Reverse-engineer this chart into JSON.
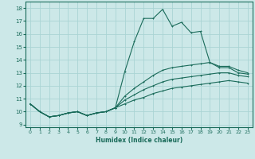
{
  "bg_color": "#cce8e8",
  "grid_color": "#aad4d4",
  "line_color": "#1a6b5a",
  "xlabel": "Humidex (Indice chaleur)",
  "xlim": [
    -0.5,
    23.5
  ],
  "ylim": [
    8.8,
    18.5
  ],
  "xticks": [
    0,
    1,
    2,
    3,
    4,
    5,
    6,
    7,
    8,
    9,
    10,
    11,
    12,
    13,
    14,
    15,
    16,
    17,
    18,
    19,
    20,
    21,
    22,
    23
  ],
  "yticks": [
    9,
    10,
    11,
    12,
    13,
    14,
    15,
    16,
    17,
    18
  ],
  "series1": {
    "x": [
      0,
      1,
      2,
      3,
      4,
      5,
      6,
      7,
      8,
      9,
      10,
      11,
      12,
      13,
      14,
      15,
      16,
      17,
      18,
      19,
      20,
      21,
      22,
      23
    ],
    "y": [
      10.6,
      10.0,
      9.6,
      9.7,
      9.9,
      10.0,
      9.7,
      9.9,
      10.0,
      10.3,
      13.1,
      15.4,
      17.2,
      17.2,
      17.9,
      16.6,
      16.9,
      16.1,
      16.2,
      13.8,
      13.4,
      13.4,
      13.0,
      12.9
    ]
  },
  "series2": {
    "x": [
      0,
      1,
      2,
      3,
      4,
      5,
      6,
      7,
      8,
      9,
      10,
      11,
      12,
      13,
      14,
      15,
      16,
      17,
      18,
      19,
      20,
      21,
      22,
      23
    ],
    "y": [
      10.6,
      10.0,
      9.6,
      9.7,
      9.9,
      10.0,
      9.7,
      9.9,
      10.0,
      10.3,
      11.2,
      11.8,
      12.3,
      12.8,
      13.2,
      13.4,
      13.5,
      13.6,
      13.7,
      13.8,
      13.5,
      13.5,
      13.2,
      13.0
    ]
  },
  "series3": {
    "x": [
      0,
      1,
      2,
      3,
      4,
      5,
      6,
      7,
      8,
      9,
      10,
      11,
      12,
      13,
      14,
      15,
      16,
      17,
      18,
      19,
      20,
      21,
      22,
      23
    ],
    "y": [
      10.6,
      10.0,
      9.6,
      9.7,
      9.9,
      10.0,
      9.7,
      9.9,
      10.0,
      10.3,
      10.9,
      11.3,
      11.7,
      12.0,
      12.3,
      12.5,
      12.6,
      12.7,
      12.8,
      12.9,
      13.0,
      13.0,
      12.8,
      12.7
    ]
  },
  "series4": {
    "x": [
      0,
      1,
      2,
      3,
      4,
      5,
      6,
      7,
      8,
      9,
      10,
      11,
      12,
      13,
      14,
      15,
      16,
      17,
      18,
      19,
      20,
      21,
      22,
      23
    ],
    "y": [
      10.6,
      10.0,
      9.6,
      9.7,
      9.9,
      10.0,
      9.7,
      9.9,
      10.0,
      10.3,
      10.6,
      10.9,
      11.1,
      11.4,
      11.6,
      11.8,
      11.9,
      12.0,
      12.1,
      12.2,
      12.3,
      12.4,
      12.3,
      12.2
    ]
  }
}
